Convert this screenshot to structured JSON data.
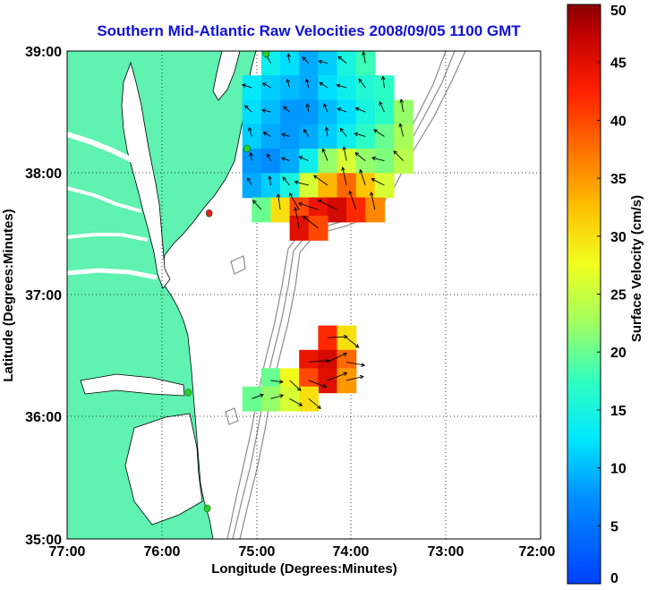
{
  "title": "Southern Mid-Atlantic Raw Velocities 2008/09/05 1100 GMT",
  "xlabel": "Longitude (Degrees:Minutes)",
  "ylabel": "Latitude (Degrees:Minutes)",
  "colorbar_label": "Surface Velocity (cm/s)",
  "x_ticks": [
    "77:00",
    "76:00",
    "75:00",
    "74:00",
    "73:00",
    "72:00"
  ],
  "y_ticks": [
    "39:00",
    "38:00",
    "37:00",
    "36:00",
    "35:00"
  ],
  "colorbar_ticks": [
    "0",
    "5",
    "10",
    "15",
    "20",
    "25",
    "30",
    "35",
    "40",
    "45",
    "50"
  ],
  "colors": {
    "land": "#5ff2b0",
    "title": "#1010d8",
    "coast": "#000000",
    "bathymetry": "#8c8c8c",
    "station": "#28d228",
    "station_offline": "#e02020"
  },
  "chart_data": {
    "type": "map-vector-field",
    "xlim": [
      -77,
      -72
    ],
    "ylim": [
      35,
      39
    ],
    "colorbar_range": [
      0,
      50
    ],
    "colorbar_units": "cm/s",
    "grid": true,
    "stations": [
      {
        "lon": -74.9,
        "lat": 38.98,
        "status": "online"
      },
      {
        "lon": -75.1,
        "lat": 38.2,
        "status": "online"
      },
      {
        "lon": -75.5,
        "lat": 37.67,
        "status": "offline"
      },
      {
        "lon": -75.72,
        "lat": 36.2,
        "status": "online"
      },
      {
        "lon": -75.52,
        "lat": 35.25,
        "status": "online"
      }
    ],
    "regions": [
      {
        "name": "northern",
        "cells": [
          [
            -74.85,
            38.9,
            14
          ],
          [
            -74.65,
            38.9,
            12
          ],
          [
            -74.45,
            38.9,
            9
          ],
          [
            -74.25,
            38.9,
            11
          ],
          [
            -74.05,
            38.9,
            15
          ],
          [
            -73.85,
            38.9,
            18
          ],
          [
            -75.05,
            38.7,
            13
          ],
          [
            -74.85,
            38.7,
            11
          ],
          [
            -74.65,
            38.7,
            10
          ],
          [
            -74.45,
            38.7,
            9
          ],
          [
            -74.25,
            38.7,
            12
          ],
          [
            -74.05,
            38.7,
            14
          ],
          [
            -73.85,
            38.7,
            16
          ],
          [
            -73.65,
            38.7,
            17
          ],
          [
            -75.05,
            38.5,
            12
          ],
          [
            -74.85,
            38.5,
            10
          ],
          [
            -74.65,
            38.5,
            8
          ],
          [
            -74.45,
            38.5,
            8
          ],
          [
            -74.25,
            38.5,
            10
          ],
          [
            -74.05,
            38.5,
            12
          ],
          [
            -73.85,
            38.5,
            15
          ],
          [
            -73.65,
            38.5,
            17
          ],
          [
            -73.45,
            38.5,
            22
          ],
          [
            -75.05,
            38.3,
            11
          ],
          [
            -74.85,
            38.3,
            9
          ],
          [
            -74.65,
            38.3,
            8
          ],
          [
            -74.45,
            38.3,
            9
          ],
          [
            -74.25,
            38.3,
            11
          ],
          [
            -74.05,
            38.3,
            14
          ],
          [
            -73.85,
            38.3,
            17
          ],
          [
            -73.65,
            38.3,
            20
          ],
          [
            -73.45,
            38.3,
            23
          ],
          [
            -75.05,
            38.1,
            8
          ],
          [
            -74.85,
            38.1,
            7
          ],
          [
            -74.65,
            38.1,
            9
          ],
          [
            -74.45,
            38.1,
            14
          ],
          [
            -74.25,
            38.1,
            22
          ],
          [
            -74.05,
            38.1,
            26
          ],
          [
            -73.85,
            38.1,
            22
          ],
          [
            -73.65,
            38.1,
            21
          ],
          [
            -73.45,
            38.1,
            24
          ],
          [
            -75.05,
            37.9,
            9
          ],
          [
            -74.85,
            37.9,
            11
          ],
          [
            -74.65,
            37.9,
            15
          ],
          [
            -74.45,
            37.9,
            26
          ],
          [
            -74.25,
            37.9,
            33
          ],
          [
            -74.05,
            37.9,
            38
          ],
          [
            -73.85,
            37.9,
            32
          ],
          [
            -73.65,
            37.9,
            26
          ],
          [
            -74.95,
            37.7,
            20
          ],
          [
            -74.75,
            37.7,
            30
          ],
          [
            -74.55,
            37.7,
            40
          ],
          [
            -74.35,
            37.7,
            44
          ],
          [
            -74.15,
            37.7,
            46
          ],
          [
            -73.95,
            37.7,
            42
          ],
          [
            -73.75,
            37.7,
            36
          ],
          [
            -74.55,
            37.55,
            45
          ],
          [
            -74.35,
            37.55,
            40
          ]
        ]
      },
      {
        "name": "southern",
        "cells": [
          [
            -74.25,
            36.65,
            42
          ],
          [
            -74.05,
            36.65,
            30
          ],
          [
            -74.45,
            36.45,
            44
          ],
          [
            -74.25,
            36.45,
            46
          ],
          [
            -74.05,
            36.45,
            38
          ],
          [
            -74.85,
            36.3,
            20
          ],
          [
            -74.65,
            36.3,
            28
          ],
          [
            -74.45,
            36.3,
            40
          ],
          [
            -74.25,
            36.3,
            45
          ],
          [
            -74.05,
            36.3,
            35
          ],
          [
            -75.05,
            36.15,
            20
          ],
          [
            -74.85,
            36.15,
            22
          ],
          [
            -74.65,
            36.15,
            26
          ],
          [
            -74.45,
            36.15,
            30
          ]
        ]
      }
    ]
  }
}
